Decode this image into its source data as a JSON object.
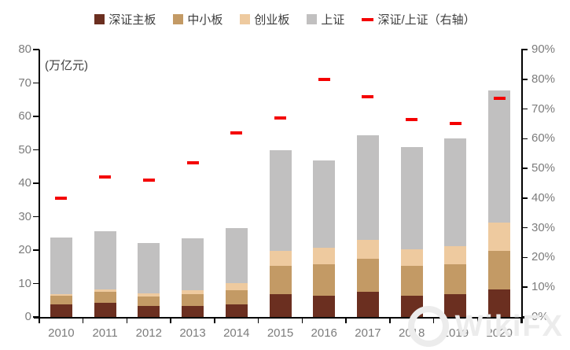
{
  "chart_data": {
    "type": "bar",
    "stacked": true,
    "title": "",
    "unit_label": "(万亿元)",
    "legend_position": "top",
    "grid": false,
    "categories": [
      "2010",
      "2011",
      "2012",
      "2013",
      "2014",
      "2015",
      "2016",
      "2017",
      "2018",
      "2019",
      "2020"
    ],
    "series": [
      {
        "name": "深证主板",
        "color": "#6b2f20",
        "values": [
          3.8,
          4.2,
          3.2,
          3.2,
          3.8,
          6.9,
          6.4,
          7.5,
          6.4,
          6.9,
          8.3
        ]
      },
      {
        "name": "中小板",
        "color": "#c39a65",
        "values": [
          2.6,
          3.3,
          2.9,
          3.7,
          4.1,
          8.5,
          9.4,
          10.0,
          9.0,
          8.8,
          11.5
        ]
      },
      {
        "name": "创业板",
        "color": "#eeca9f",
        "values": [
          0.5,
          0.8,
          1.0,
          1.0,
          2.3,
          4.3,
          4.8,
          5.5,
          4.8,
          5.4,
          8.4
        ]
      },
      {
        "name": "上证",
        "color": "#c1c0c0",
        "values": [
          16.8,
          17.3,
          15.1,
          15.6,
          16.3,
          30.1,
          26.2,
          31.3,
          30.7,
          32.4,
          39.6
        ]
      }
    ],
    "line_series": {
      "name": "深证/上证（右轴）",
      "color": "#f40000",
      "axis": "right",
      "marker": "dash",
      "values": [
        40,
        47,
        46,
        52,
        62,
        67,
        80,
        74,
        66.5,
        65,
        73.5
      ]
    },
    "left_axis": {
      "min": 0,
      "max": 80,
      "step": 10,
      "tick_labels": [
        "0",
        "10",
        "20",
        "30",
        "40",
        "50",
        "60",
        "70",
        "80"
      ]
    },
    "right_axis": {
      "min": 0,
      "max": 90,
      "step": 10,
      "tick_labels": [
        "0%",
        "10%",
        "20%",
        "30%",
        "40%",
        "50%",
        "60%",
        "70%",
        "80%",
        "90%"
      ]
    }
  },
  "watermark": {
    "text": "WikiFX"
  }
}
